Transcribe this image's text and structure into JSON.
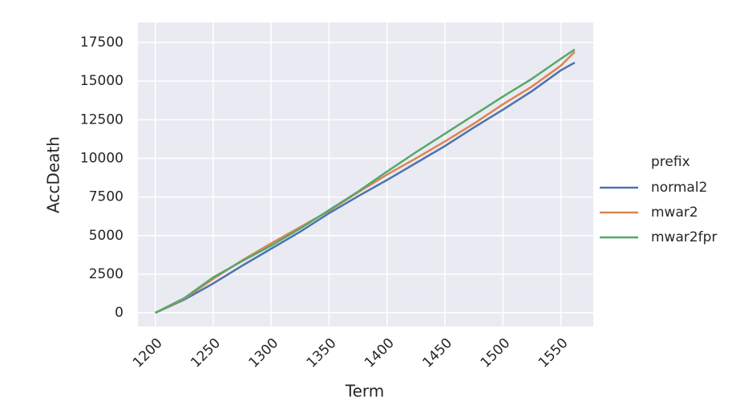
{
  "chart_data": {
    "type": "line",
    "x_label": "Term",
    "y_label": "AccDeath",
    "legend_title": "prefix",
    "legend_position": "right-outside",
    "grid": true,
    "x": [
      1200,
      1225,
      1250,
      1275,
      1300,
      1325,
      1350,
      1375,
      1400,
      1425,
      1450,
      1475,
      1500,
      1525,
      1550,
      1562
    ],
    "series": [
      {
        "name": "normal2",
        "color": "#4c72b0",
        "values": [
          0,
          850,
          1900,
          3050,
          4150,
          5250,
          6450,
          7550,
          8600,
          9700,
          10800,
          12000,
          13150,
          14350,
          15700,
          16200
        ]
      },
      {
        "name": "mwar2",
        "color": "#dd8452",
        "values": [
          0,
          900,
          2200,
          3400,
          4500,
          5550,
          6600,
          7800,
          8950,
          10000,
          11100,
          12250,
          13500,
          14650,
          16000,
          16900
        ]
      },
      {
        "name": "mwar2fpr",
        "color": "#55a868",
        "values": [
          0,
          950,
          2300,
          3350,
          4350,
          5450,
          6650,
          7850,
          9150,
          10400,
          11600,
          12800,
          14000,
          15150,
          16450,
          17050
        ]
      }
    ],
    "xlim": [
      1185,
      1578
    ],
    "xticks": [
      1200,
      1250,
      1300,
      1350,
      1400,
      1450,
      1500,
      1550
    ],
    "ylim": [
      -880,
      18800
    ],
    "yticks": [
      0,
      2500,
      5000,
      7500,
      10000,
      12500,
      15000,
      17500
    ]
  }
}
